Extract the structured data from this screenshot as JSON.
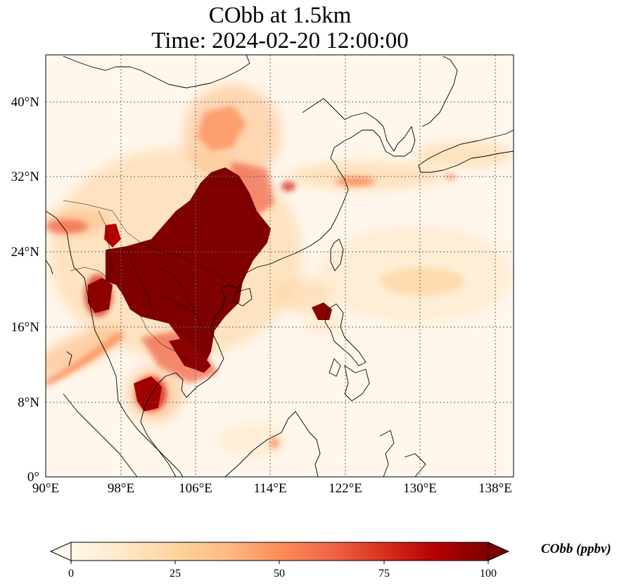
{
  "title": {
    "line1": "CObb at 1.5km",
    "line2": "Time: 2024-02-20 12:00:00"
  },
  "map": {
    "projection": "PlateCarree",
    "lon_range": [
      90,
      140
    ],
    "lat_range": [
      0,
      45
    ],
    "gridlines": "dotted",
    "lon_ticks": [
      {
        "value": 90,
        "label": "90°E"
      },
      {
        "value": 98,
        "label": "98°E"
      },
      {
        "value": 106,
        "label": "106°E"
      },
      {
        "value": 114,
        "label": "114°E"
      },
      {
        "value": 122,
        "label": "122°E"
      },
      {
        "value": 130,
        "label": "130°E"
      },
      {
        "value": 138,
        "label": "138°E"
      }
    ],
    "lat_ticks": [
      {
        "value": 0,
        "label": "0°"
      },
      {
        "value": 8,
        "label": "8°N"
      },
      {
        "value": 16,
        "label": "16°N"
      },
      {
        "value": 24,
        "label": "24°N"
      },
      {
        "value": 32,
        "label": "32°N"
      },
      {
        "value": 40,
        "label": "40°N"
      }
    ],
    "plume_regions_approx": [
      {
        "name": "South China / Indochina core",
        "lon": [
          100,
          114
        ],
        "lat": [
          14,
          32
        ],
        "level": "100+"
      },
      {
        "name": "Northern Myanmar",
        "lon": [
          95,
          101
        ],
        "lat": [
          18,
          25
        ],
        "level": "100+"
      },
      {
        "name": "Northern Thailand",
        "lon": [
          99,
          102
        ],
        "lat": [
          7,
          11
        ],
        "level": "80"
      },
      {
        "name": "Northern Luzon",
        "lon": [
          118,
          121
        ],
        "lat": [
          17,
          19
        ],
        "level": "90"
      },
      {
        "name": "North China plume",
        "lon": [
          106,
          112
        ],
        "lat": [
          32,
          40
        ],
        "level": "40"
      },
      {
        "name": "East China Sea band",
        "lon": [
          120,
          126
        ],
        "lat": [
          30,
          32
        ],
        "level": "35"
      },
      {
        "name": "Bay of Bengal band",
        "lon": [
          90,
          98
        ],
        "lat": [
          10,
          16
        ],
        "level": "40"
      }
    ]
  },
  "colorbar": {
    "cmap": "OrRd",
    "min": 0,
    "max": 100,
    "extend": "both",
    "ticks": [
      {
        "value": 0,
        "label": "0"
      },
      {
        "value": 25,
        "label": "25"
      },
      {
        "value": 50,
        "label": "50"
      },
      {
        "value": 75,
        "label": "75"
      },
      {
        "value": 100,
        "label": "100"
      }
    ],
    "label": "CObb (ppbv)"
  }
}
